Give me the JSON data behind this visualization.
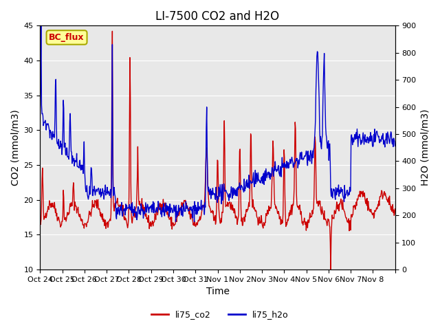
{
  "title": "LI-7500 CO2 and H2O",
  "xlabel": "Time",
  "ylabel_left": "CO2 (mmol/m3)",
  "ylabel_right": "H2O (mmol/m3)",
  "ylim_left": [
    10,
    45
  ],
  "ylim_right": [
    0,
    900
  ],
  "yticks_left": [
    10,
    15,
    20,
    25,
    30,
    35,
    40,
    45
  ],
  "yticks_right": [
    0,
    100,
    200,
    300,
    400,
    500,
    600,
    700,
    800,
    900
  ],
  "xtick_positions": [
    0,
    1,
    2,
    3,
    4,
    5,
    6,
    7,
    8,
    9,
    10,
    11,
    12,
    13,
    14,
    15,
    16
  ],
  "xtick_labels": [
    "Oct 24",
    "Oct 25",
    "Oct 26",
    "Oct 27",
    "Oct 28",
    "Oct 29",
    "Oct 30",
    "Oct 31",
    "Nov 1",
    "Nov 2",
    "Nov 3",
    "Nov 4",
    "Nov 5",
    "Nov 6",
    "Nov 7",
    "Nov 8",
    ""
  ],
  "line_co2_color": "#cc0000",
  "line_h2o_color": "#0000cc",
  "legend_co2": "li75_co2",
  "legend_h2o": "li75_h2o",
  "annotation_text": "BC_flux",
  "annotation_color": "#cc0000",
  "annotation_bg": "#ffff99",
  "annotation_border": "#aaaa00",
  "bg_color": "#ffffff",
  "plot_bg_color": "#e8e8e8",
  "title_fontsize": 12,
  "axis_fontsize": 10,
  "tick_fontsize": 8,
  "linewidth": 1.0,
  "n_days": 16,
  "n_points": 768
}
